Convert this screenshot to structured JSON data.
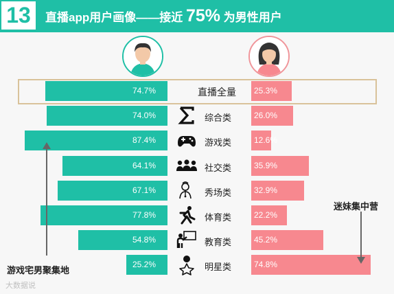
{
  "header": {
    "number": "13",
    "title_prefix": "直播app用户画像——接近",
    "title_highlight": "75%",
    "title_suffix": "为男性用户"
  },
  "chart_data": {
    "type": "bar",
    "orientation": "horizontal",
    "layout": "diverging",
    "categories": [
      "直播全量",
      "综合类",
      "游戏类",
      "社交类",
      "秀场类",
      "体育类",
      "教育类",
      "明星类"
    ],
    "series": [
      {
        "values": [
          74.7,
          74.0,
          87.4,
          64.1,
          67.1,
          77.8,
          54.8,
          25.2
        ],
        "labels": [
          "74.7%",
          "74.0%",
          "87.4%",
          "64.1%",
          "67.1%",
          "77.8%",
          "54.8%",
          "25.2%"
        ],
        "color": "#1fbfa6"
      },
      {
        "values": [
          25.3,
          26.0,
          12.6,
          35.9,
          32.9,
          22.2,
          45.2,
          74.8
        ],
        "labels": [
          "25.3%",
          "26.0%",
          "12.6%",
          "35.9%",
          "32.9%",
          "22.2%",
          "45.2%",
          "74.8%"
        ],
        "color": "#f7888f"
      }
    ],
    "icons": [
      "",
      "sigma-icon",
      "gamepad-icon",
      "people-icon",
      "performer-icon",
      "runner-icon",
      "teacher-icon",
      "star-person-icon"
    ],
    "highlighted_category": "直播全量",
    "annotations": {
      "left": "游戏宅男聚集地",
      "right": "迷妹集中营"
    }
  },
  "watermark": "大数据说"
}
